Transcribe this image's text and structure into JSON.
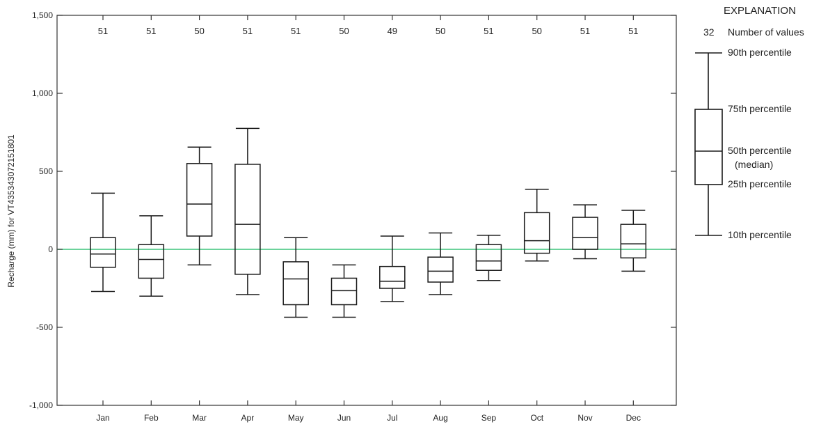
{
  "chart_data": {
    "type": "boxplot",
    "title": "",
    "ylabel": "Recharge (mm) for VT435343072151801",
    "xlabel": "",
    "ylim": [
      -1000,
      1500
    ],
    "yticks": [
      -1000,
      -500,
      0,
      500,
      1000,
      1500
    ],
    "ytick_labels": [
      "-1,000",
      "-500",
      "0",
      "500",
      "1,000",
      "1,500"
    ],
    "reference_line": {
      "y": 0,
      "color": "#3cc47a"
    },
    "categories": [
      "Jan",
      "Feb",
      "Mar",
      "Apr",
      "May",
      "Jun",
      "Jul",
      "Aug",
      "Sep",
      "Oct",
      "Nov",
      "Dec"
    ],
    "counts": [
      "51",
      "51",
      "50",
      "51",
      "51",
      "50",
      "49",
      "50",
      "51",
      "50",
      "51",
      "51"
    ],
    "boxes": [
      {
        "p10": -270,
        "p25": -115,
        "p50": -30,
        "p75": 75,
        "p90": 360
      },
      {
        "p10": -300,
        "p25": -185,
        "p50": -65,
        "p75": 30,
        "p90": 215
      },
      {
        "p10": -100,
        "p25": 85,
        "p50": 290,
        "p75": 550,
        "p90": 655
      },
      {
        "p10": -290,
        "p25": -160,
        "p50": 160,
        "p75": 545,
        "p90": 775
      },
      {
        "p10": -435,
        "p25": -355,
        "p50": -190,
        "p75": -80,
        "p90": 75
      },
      {
        "p10": -435,
        "p25": -355,
        "p50": -265,
        "p75": -185,
        "p90": -100
      },
      {
        "p10": -335,
        "p25": -250,
        "p50": -205,
        "p75": -110,
        "p90": 85
      },
      {
        "p10": -290,
        "p25": -210,
        "p50": -140,
        "p75": -50,
        "p90": 105
      },
      {
        "p10": -200,
        "p25": -135,
        "p50": -75,
        "p75": 30,
        "p90": 90
      },
      {
        "p10": -75,
        "p25": -25,
        "p50": 55,
        "p75": 235,
        "p90": 385
      },
      {
        "p10": -60,
        "p25": 0,
        "p50": 75,
        "p75": 205,
        "p90": 285
      },
      {
        "p10": -140,
        "p25": -55,
        "p50": 35,
        "p75": 160,
        "p90": 250
      }
    ],
    "colors": {
      "box": "#1a1a1a",
      "zero_line": "#3cc47a"
    }
  },
  "explanation": {
    "title": "EXPLANATION",
    "count_example": "32",
    "count_text": "Number of values",
    "p90_text": "90th percentile",
    "p75_text": "75th percentile",
    "p50_text": "50th percentile",
    "p50_sub": "(median)",
    "p25_text": "25th percentile",
    "p10_text": "10th percentile"
  }
}
